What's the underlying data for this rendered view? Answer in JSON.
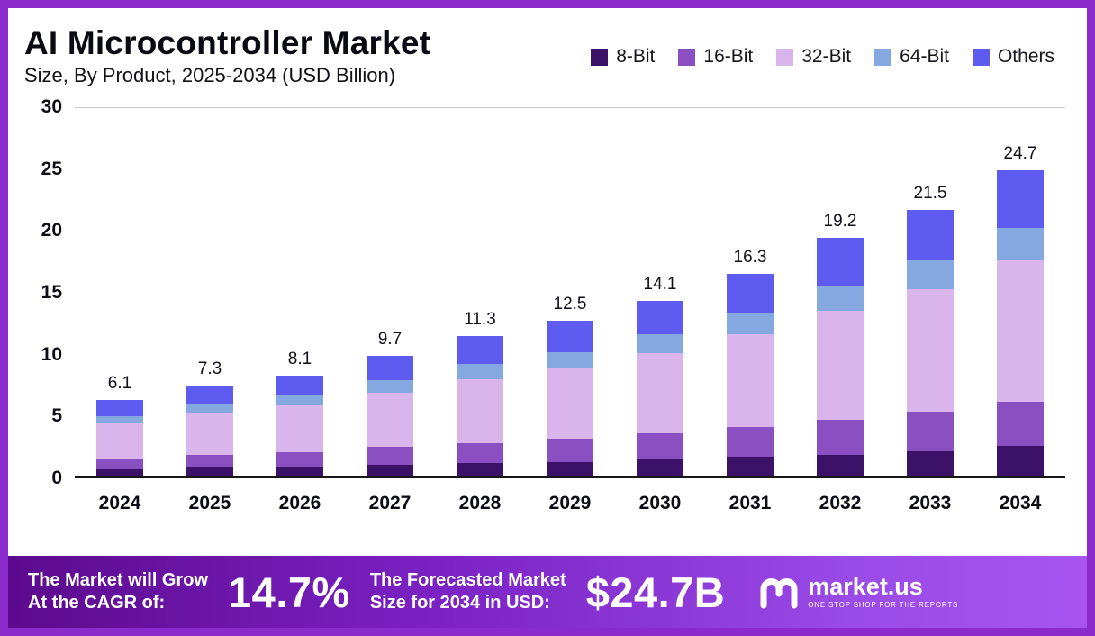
{
  "header": {
    "title": "AI Microcontroller Market",
    "subtitle": "Size, By Product, 2025-2034 (USD Billion)"
  },
  "chart_data": {
    "type": "bar",
    "stacked": true,
    "title": "AI Microcontroller Market Size, By Product, 2025-2034 (USD Billion)",
    "categories": [
      "2024",
      "2025",
      "2026",
      "2027",
      "2028",
      "2029",
      "2030",
      "2031",
      "2032",
      "2033",
      "2034"
    ],
    "series": [
      {
        "name": "8-Bit",
        "color": "#3b1268",
        "values": [
          0.5,
          0.7,
          0.7,
          0.9,
          1.0,
          1.1,
          1.3,
          1.5,
          1.7,
          2.0,
          2.4
        ]
      },
      {
        "name": "16-Bit",
        "color": "#8a4fc0",
        "values": [
          0.9,
          1.0,
          1.2,
          1.4,
          1.6,
          1.9,
          2.1,
          2.4,
          2.8,
          3.2,
          3.6
        ]
      },
      {
        "name": "32-Bit",
        "color": "#d9b5ec",
        "values": [
          2.8,
          3.3,
          3.8,
          4.4,
          5.2,
          5.7,
          6.5,
          7.5,
          8.8,
          9.9,
          11.4
        ]
      },
      {
        "name": "64-Bit",
        "color": "#85a8e0",
        "values": [
          0.6,
          0.8,
          0.8,
          1.0,
          1.2,
          1.3,
          1.5,
          1.7,
          2.0,
          2.3,
          2.6
        ]
      },
      {
        "name": "Others",
        "color": "#5d5bf0",
        "values": [
          1.3,
          1.5,
          1.6,
          2.0,
          2.3,
          2.5,
          2.7,
          3.2,
          3.9,
          4.1,
          4.7
        ]
      }
    ],
    "totals": [
      6.1,
      7.3,
      8.1,
      9.7,
      11.3,
      12.5,
      14.1,
      16.3,
      19.2,
      21.5,
      24.7
    ],
    "ylim": [
      0,
      30
    ],
    "yticks": [
      0,
      5,
      10,
      15,
      20,
      25,
      30
    ],
    "xlabel": "",
    "ylabel": "",
    "grid": false,
    "legend_position": "top-right"
  },
  "banner": {
    "cagr_label_line1": "The Market will Grow",
    "cagr_label_line2": "At the CAGR of:",
    "cagr_value": "14.7%",
    "forecast_label_line1": "The Forecasted Market",
    "forecast_label_line2": "Size for 2034 in USD:",
    "forecast_value": "$24.7B",
    "brand_name": "market.us",
    "brand_tagline": "ONE STOP SHOP FOR THE REPORTS"
  },
  "colors": {
    "frame": "#8c2bcb",
    "banner_gradient_start": "#5c0a8e",
    "banner_gradient_end": "#a855f0",
    "axis_baseline": "#161616"
  }
}
